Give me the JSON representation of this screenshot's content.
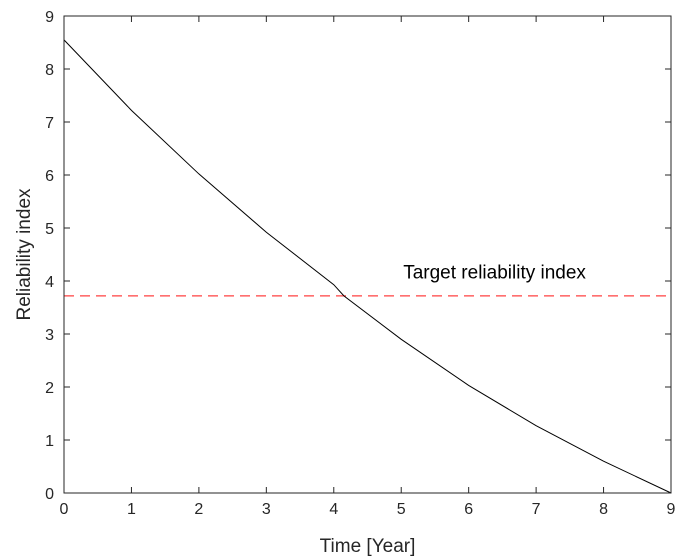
{
  "chart_data": {
    "type": "line",
    "title": "",
    "xlabel": "Time [Year]",
    "ylabel": "Reliability index",
    "xlim": [
      0,
      9
    ],
    "ylim": [
      0,
      9
    ],
    "xticks": [
      0,
      1,
      2,
      3,
      4,
      5,
      6,
      7,
      8,
      9
    ],
    "yticks": [
      0,
      1,
      2,
      3,
      4,
      5,
      6,
      7,
      8,
      9
    ],
    "grid": false,
    "series": [
      {
        "color": "#000000",
        "style": "solid",
        "x": [
          0,
          1,
          2,
          3,
          4,
          4.15,
          5,
          6,
          7,
          8,
          9
        ],
        "y": [
          8.55,
          7.22,
          6.02,
          4.92,
          3.93,
          3.72,
          2.9,
          2.03,
          1.27,
          0.6,
          0.0
        ]
      }
    ],
    "reference_lines": [
      {
        "orientation": "horizontal",
        "y": 3.72,
        "color": "#ff0000",
        "style": "dashed",
        "label": "Target reliability index"
      }
    ],
    "annotations": [
      {
        "text": "Target reliability index",
        "x": 5.0,
        "y": 3.95
      }
    ]
  }
}
